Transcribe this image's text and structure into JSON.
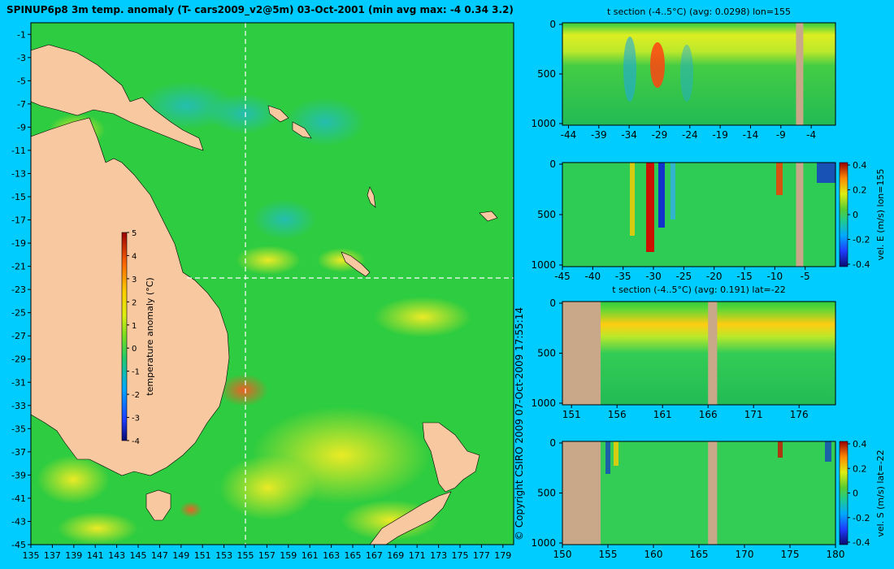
{
  "page": {
    "title": "SPINUP6p8 3m temp. anomaly (T- cars2009_v2@5m) 03-Oct-2001 (min avg max: -4 0.34 3.2)",
    "copyright": "© Copyright CSIRO 2009   07-Oct-2009 17:55:14"
  },
  "colors": {
    "background": "#00ccff",
    "land": "#f8c8a0",
    "section_land": "#c8a888",
    "ocean_base": "#2ecc40"
  },
  "chart_data": [
    {
      "id": "map",
      "type": "heatmap",
      "title": "SPINUP6p8 3m temp. anomaly (T- cars2009_v2@5m) 03-Oct-2001 (min avg max: -4 0.34 3.2)",
      "x_ticks": [
        "135",
        "137",
        "139",
        "141",
        "143",
        "145",
        "147",
        "149",
        "151",
        "153",
        "155",
        "157",
        "159",
        "161",
        "163",
        "165",
        "167",
        "169",
        "171",
        "173",
        "175",
        "177",
        "179"
      ],
      "y_ticks": [
        "-1",
        "-3",
        "-5",
        "-7",
        "-9",
        "-11",
        "-13",
        "-15",
        "-17",
        "-19",
        "-21",
        "-23",
        "-25",
        "-27",
        "-29",
        "-31",
        "-33",
        "-35",
        "-37",
        "-39",
        "-41",
        "-43",
        "-45"
      ],
      "xlim": [
        135,
        180
      ],
      "ylim": [
        -45,
        0
      ],
      "markers": {
        "lon": 155,
        "lat": -22
      },
      "colorbar": {
        "label": "temperature anomaly (°C)",
        "range": [
          -4,
          5
        ],
        "ticks": [
          "5",
          "4",
          "3",
          "2",
          "1",
          "0",
          "-1",
          "-2",
          "-3",
          "-4"
        ]
      }
    },
    {
      "id": "temp_lon",
      "type": "heatmap",
      "title": "t section (-4..5°C) (avg: 0.0298) lon=155",
      "x_ticks": [
        "-44",
        "-39",
        "-34",
        "-29",
        "-24",
        "-19",
        "-14",
        "-9",
        "-4"
      ],
      "xlim": [
        -45,
        0
      ],
      "y_ticks": [
        "0",
        "500",
        "1000"
      ],
      "ylim": [
        1000,
        0
      ],
      "land": [
        [
          -6.5,
          -5.3
        ]
      ]
    },
    {
      "id": "vel_lon",
      "type": "heatmap",
      "title": "",
      "x_ticks": [
        "-45",
        "-40",
        "-35",
        "-30",
        "-25",
        "-20",
        "-15",
        "-10",
        "-5"
      ],
      "xlim": [
        -45,
        0
      ],
      "y_ticks": [
        "0",
        "500",
        "1000"
      ],
      "ylim": [
        1000,
        0
      ],
      "land": [
        [
          -6.5,
          -5.3
        ]
      ],
      "colorbar": {
        "label": "vel. E (m/s) lon=155",
        "range": [
          -0.4,
          0.4
        ],
        "ticks": [
          "0.4",
          "0.2",
          "0",
          "-0.2",
          "-0.4"
        ]
      }
    },
    {
      "id": "temp_lat",
      "type": "heatmap",
      "title": "t section (-4..5°C) (avg: 0.191) lat=-22",
      "x_ticks": [
        "151",
        "156",
        "161",
        "166",
        "171",
        "176"
      ],
      "xlim": [
        150,
        180
      ],
      "y_ticks": [
        "0",
        "500",
        "1000"
      ],
      "ylim": [
        1000,
        0
      ],
      "land": [
        [
          150,
          154.2
        ],
        [
          166,
          167
        ]
      ]
    },
    {
      "id": "vel_lat",
      "type": "heatmap",
      "title": "",
      "x_ticks": [
        "150",
        "155",
        "160",
        "165",
        "170",
        "175",
        "180"
      ],
      "xlim": [
        150,
        180
      ],
      "y_ticks": [
        "0",
        "500",
        "1000"
      ],
      "ylim": [
        1000,
        0
      ],
      "land": [
        [
          150,
          154.2
        ],
        [
          166,
          167
        ]
      ],
      "colorbar": {
        "label": "vel. S (m/s) lat=-22",
        "range": [
          -0.4,
          0.4
        ],
        "ticks": [
          "0.4",
          "0.2",
          "0",
          "-0.2",
          "-0.4"
        ]
      }
    }
  ]
}
